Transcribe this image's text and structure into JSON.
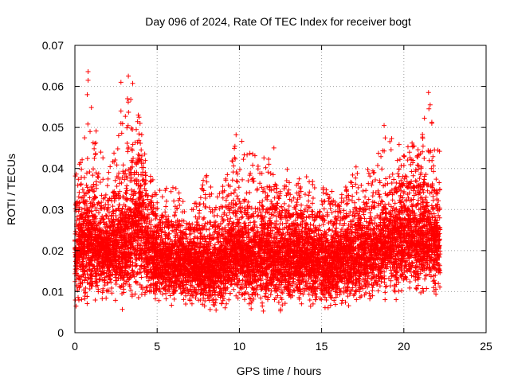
{
  "chart_data": {
    "type": "scatter",
    "title": "Day 096 of 2024, Rate Of TEC Index for receiver bogt",
    "xlabel": "GPS time / hours",
    "ylabel": "ROTI / TECUs",
    "xlim": [
      0,
      25
    ],
    "ylim": [
      0,
      0.07
    ],
    "xticks": [
      0,
      5,
      10,
      15,
      20,
      25
    ],
    "xtick_labels": [
      "0",
      "5",
      "10",
      "15",
      "20",
      "25"
    ],
    "yticks": [
      0,
      0.01,
      0.02,
      0.03,
      0.04,
      0.05,
      0.06,
      0.07
    ],
    "ytick_labels": [
      "0",
      "0.01",
      "0.02",
      "0.03",
      "0.04",
      "0.05",
      "0.06",
      "0.07"
    ],
    "grid": true,
    "legend": "none",
    "marker": "+",
    "color": "#ff0000",
    "x_coverage": [
      0,
      22.2
    ],
    "envelope": {
      "x": [
        0,
        0.5,
        1,
        1.5,
        2,
        2.5,
        3,
        3.5,
        4,
        4.5,
        5,
        5.5,
        6,
        6.5,
        7,
        7.5,
        8,
        8.5,
        9,
        9.5,
        10,
        10.5,
        11,
        11.5,
        12,
        12.5,
        13,
        13.5,
        14,
        14.5,
        15,
        15.5,
        16,
        16.5,
        17,
        17.5,
        18,
        18.5,
        19,
        19.5,
        20,
        20.5,
        21,
        21.5,
        22
      ],
      "low": [
        0.004,
        0.005,
        0.005,
        0.006,
        0.006,
        0.006,
        0.004,
        0.004,
        0.005,
        0.006,
        0.004,
        0.005,
        0.005,
        0.006,
        0.005,
        0.005,
        0.003,
        0.003,
        0.004,
        0.005,
        0.004,
        0.004,
        0.005,
        0.005,
        0.004,
        0.003,
        0.004,
        0.004,
        0.005,
        0.004,
        0.004,
        0.005,
        0.005,
        0.004,
        0.003,
        0.006,
        0.006,
        0.006,
        0.006,
        0.006,
        0.006,
        0.006,
        0.005,
        0.006,
        0.007
      ],
      "dense_high": [
        0.03,
        0.033,
        0.035,
        0.03,
        0.03,
        0.033,
        0.033,
        0.04,
        0.042,
        0.03,
        0.028,
        0.026,
        0.026,
        0.026,
        0.025,
        0.025,
        0.025,
        0.025,
        0.027,
        0.03,
        0.032,
        0.028,
        0.028,
        0.03,
        0.03,
        0.028,
        0.028,
        0.028,
        0.028,
        0.028,
        0.028,
        0.026,
        0.027,
        0.028,
        0.03,
        0.03,
        0.03,
        0.031,
        0.033,
        0.034,
        0.036,
        0.035,
        0.036,
        0.036,
        0.034
      ],
      "outlier_high": [
        0.04,
        0.044,
        0.064,
        0.045,
        0.04,
        0.045,
        0.062,
        0.063,
        0.05,
        0.04,
        0.036,
        0.036,
        0.036,
        0.035,
        0.034,
        0.032,
        0.042,
        0.032,
        0.036,
        0.048,
        0.048,
        0.046,
        0.044,
        0.046,
        0.04,
        0.036,
        0.041,
        0.04,
        0.04,
        0.038,
        0.036,
        0.037,
        0.034,
        0.036,
        0.041,
        0.042,
        0.04,
        0.045,
        0.051,
        0.046,
        0.046,
        0.046,
        0.046,
        0.059,
        0.046
      ]
    },
    "peaks": [
      {
        "x": 0.8,
        "y": 0.0636
      },
      {
        "x": 0.8,
        "y": 0.0615
      },
      {
        "x": 0.75,
        "y": 0.058
      },
      {
        "x": 3.25,
        "y": 0.0625
      },
      {
        "x": 2.8,
        "y": 0.061
      },
      {
        "x": 21.5,
        "y": 0.0585
      },
      {
        "x": 21.6,
        "y": 0.0555
      },
      {
        "x": 18.8,
        "y": 0.0505
      },
      {
        "x": 9.8,
        "y": 0.0482
      },
      {
        "x": 12.1,
        "y": 0.045
      },
      {
        "x": 20.5,
        "y": 0.0462
      },
      {
        "x": 3.9,
        "y": 0.0525
      },
      {
        "x": 2.8,
        "y": 0.054
      },
      {
        "x": 21.7,
        "y": 0.051
      }
    ],
    "sample_points_per_hour": 420
  }
}
